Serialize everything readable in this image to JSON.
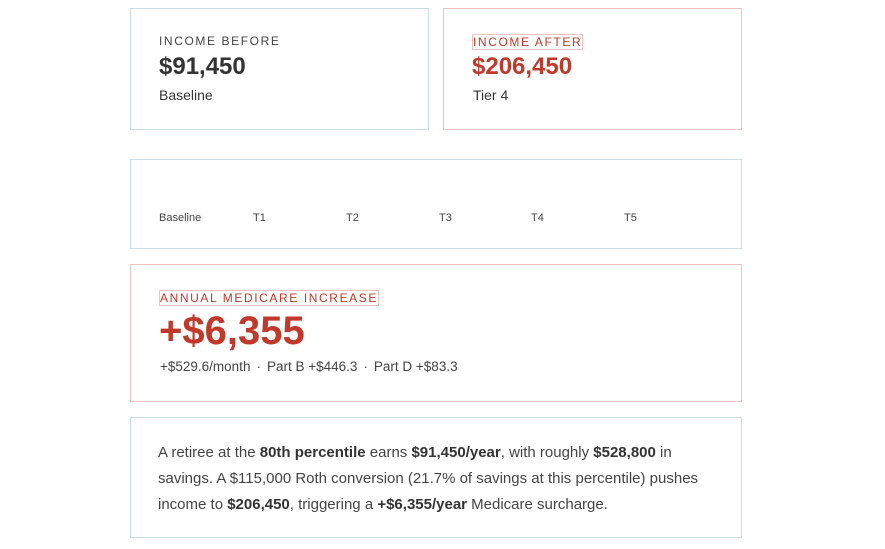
{
  "income_before": {
    "eyebrow": "INCOME BEFORE",
    "amount": "$91,450",
    "caption": "Baseline"
  },
  "income_after": {
    "eyebrow": "INCOME AFTER",
    "amount": "$206,450",
    "caption": "Tier 4"
  },
  "tiers": {
    "labels": [
      "Baseline",
      "T1",
      "T2",
      "T3",
      "T4",
      "T5"
    ]
  },
  "medicare": {
    "eyebrow": "ANNUAL MEDICARE INCREASE",
    "amount": "+$6,355",
    "monthly": "+$529.6/month",
    "dot": "·",
    "part_b": "Part B +$446.3",
    "part_d": "Part D +$83.3"
  },
  "summary": {
    "t1": "A retiree at the ",
    "percentile": "80th percentile",
    "t2": " earns ",
    "earnings": "$91,450/year",
    "t3": ", with roughly ",
    "savings": "$528,800",
    "t4": " in savings. A $115,000 Roth conversion (21.7% of savings at this percentile) pushes income to ",
    "income": "$206,450",
    "t5": ", triggering a ",
    "surcharge": "+$6,355/year",
    "t6": " Medicare surcharge."
  },
  "colors": {
    "accent_red": "#c0392b",
    "border_blue": "#c9dcea",
    "border_red": "#ecc5c0"
  }
}
